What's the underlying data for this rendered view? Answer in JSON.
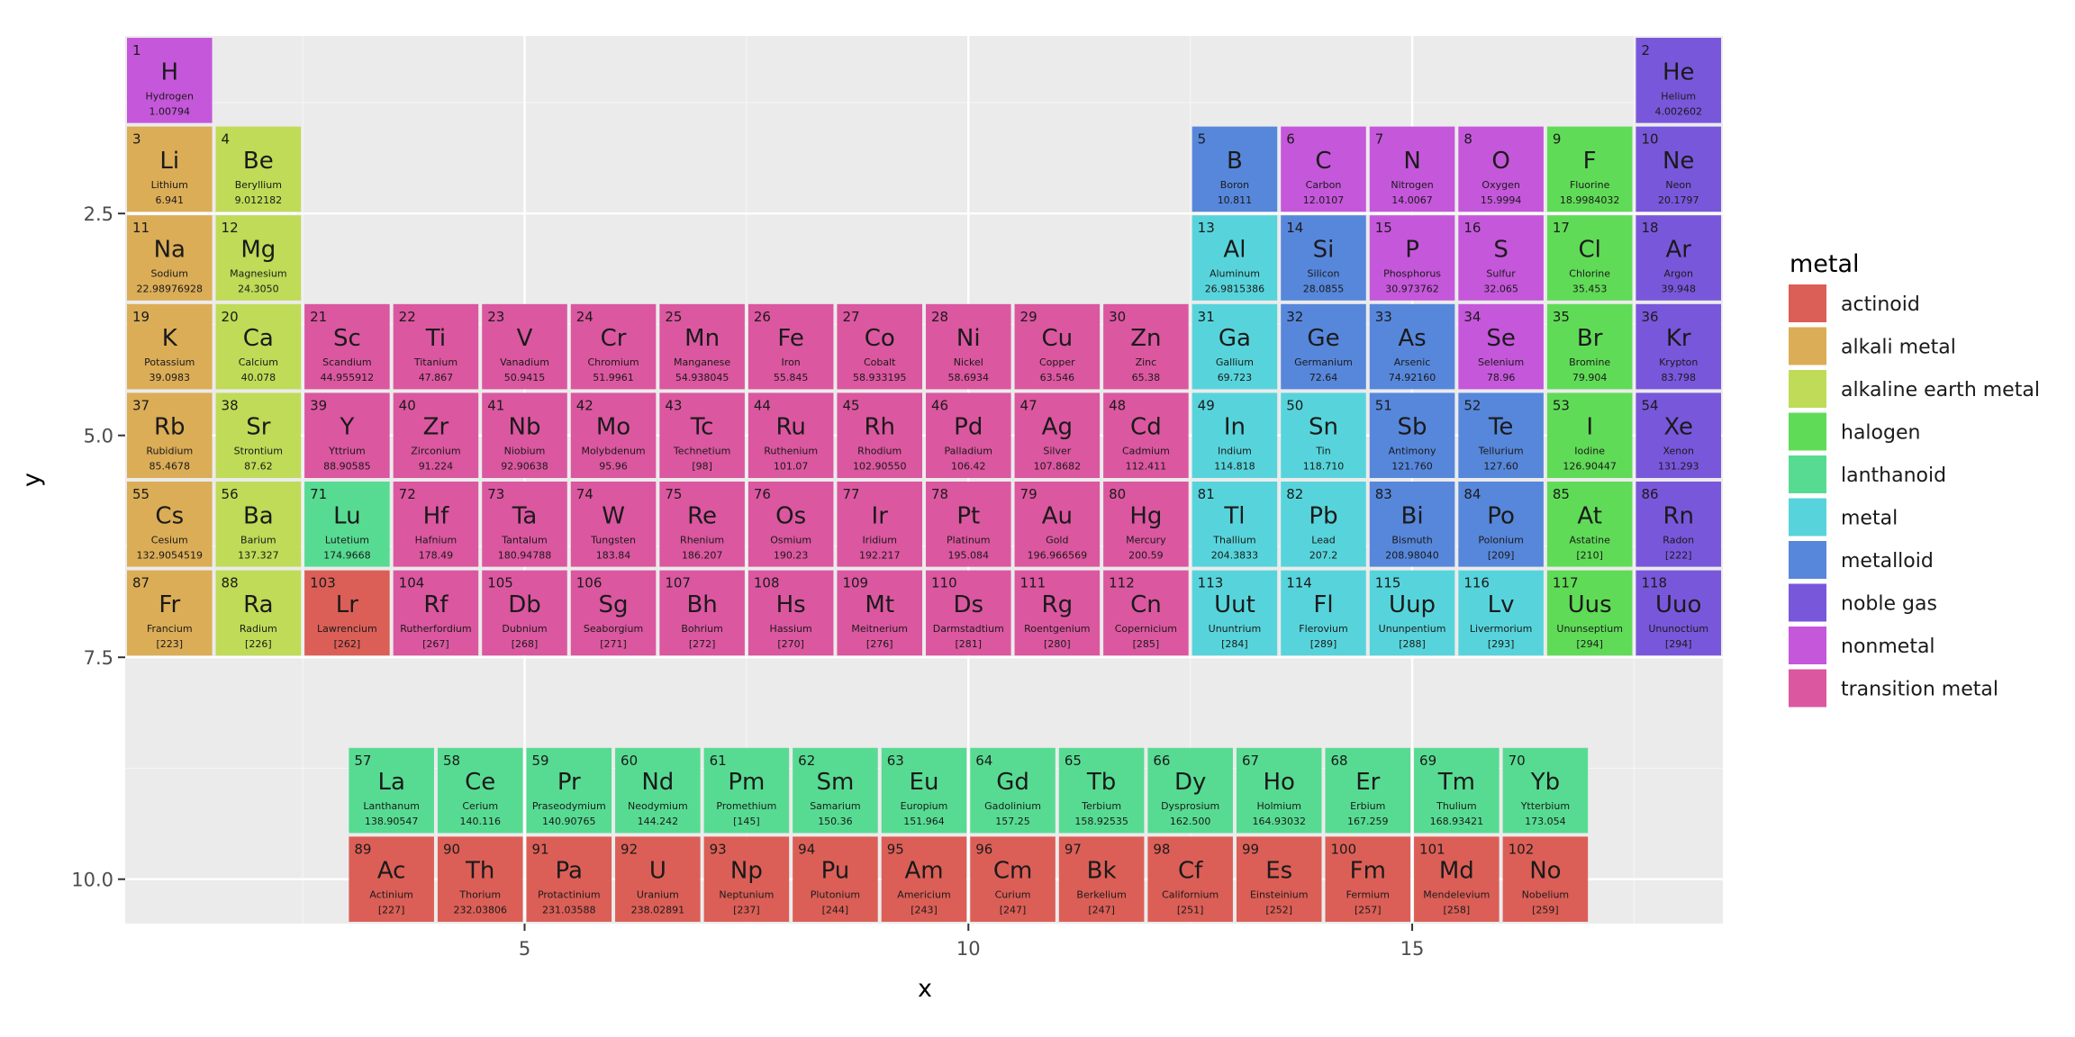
{
  "chart_data": {
    "type": "heatmap",
    "xlabel": "x",
    "ylabel": "y",
    "xlim": [
      0.5,
      18.5
    ],
    "ylim": [
      0.5,
      10.5
    ],
    "y_reversed": true,
    "x_ticks": [
      {
        "value": 5,
        "label": "5"
      },
      {
        "value": 10,
        "label": "10"
      },
      {
        "value": 15,
        "label": "15"
      }
    ],
    "y_ticks": [
      {
        "value": 2.5,
        "label": "2.5"
      },
      {
        "value": 5,
        "label": "5.0"
      },
      {
        "value": 7.5,
        "label": "7.5"
      },
      {
        "value": 10,
        "label": "10.0"
      }
    ],
    "grid": true,
    "legend": {
      "title": "metal",
      "position": "right",
      "entries": [
        {
          "label": "actinoid",
          "color": "#db5f57"
        },
        {
          "label": "alkali metal",
          "color": "#dbad57"
        },
        {
          "label": "alkaline earth metal",
          "color": "#bfdb57"
        },
        {
          "label": "halogen",
          "color": "#60db57"
        },
        {
          "label": "lanthanoid",
          "color": "#57db92"
        },
        {
          "label": "metal",
          "color": "#57d4db"
        },
        {
          "label": "metalloid",
          "color": "#5787db"
        },
        {
          "label": "noble gas",
          "color": "#7957db"
        },
        {
          "label": "nonmetal",
          "color": "#c557db"
        },
        {
          "label": "transition metal",
          "color": "#db57a0"
        }
      ]
    },
    "fields": [
      "atomic_number",
      "symbol",
      "name",
      "atomic_mass",
      "x",
      "y",
      "metal"
    ],
    "elements": [
      [
        1,
        "H",
        "Hydrogen",
        "1.00794",
        1,
        1,
        "nonmetal"
      ],
      [
        2,
        "He",
        "Helium",
        "4.002602",
        18,
        1,
        "noble gas"
      ],
      [
        3,
        "Li",
        "Lithium",
        "6.941",
        1,
        2,
        "alkali metal"
      ],
      [
        4,
        "Be",
        "Beryllium",
        "9.012182",
        2,
        2,
        "alkaline earth metal"
      ],
      [
        5,
        "B",
        "Boron",
        "10.811",
        13,
        2,
        "metalloid"
      ],
      [
        6,
        "C",
        "Carbon",
        "12.0107",
        14,
        2,
        "nonmetal"
      ],
      [
        7,
        "N",
        "Nitrogen",
        "14.0067",
        15,
        2,
        "nonmetal"
      ],
      [
        8,
        "O",
        "Oxygen",
        "15.9994",
        16,
        2,
        "nonmetal"
      ],
      [
        9,
        "F",
        "Fluorine",
        "18.9984032",
        17,
        2,
        "halogen"
      ],
      [
        10,
        "Ne",
        "Neon",
        "20.1797",
        18,
        2,
        "noble gas"
      ],
      [
        11,
        "Na",
        "Sodium",
        "22.98976928",
        1,
        3,
        "alkali metal"
      ],
      [
        12,
        "Mg",
        "Magnesium",
        "24.3050",
        2,
        3,
        "alkaline earth metal"
      ],
      [
        13,
        "Al",
        "Aluminum",
        "26.9815386",
        13,
        3,
        "metal"
      ],
      [
        14,
        "Si",
        "Silicon",
        "28.0855",
        14,
        3,
        "metalloid"
      ],
      [
        15,
        "P",
        "Phosphorus",
        "30.973762",
        15,
        3,
        "nonmetal"
      ],
      [
        16,
        "S",
        "Sulfur",
        "32.065",
        16,
        3,
        "nonmetal"
      ],
      [
        17,
        "Cl",
        "Chlorine",
        "35.453",
        17,
        3,
        "halogen"
      ],
      [
        18,
        "Ar",
        "Argon",
        "39.948",
        18,
        3,
        "noble gas"
      ],
      [
        19,
        "K",
        "Potassium",
        "39.0983",
        1,
        4,
        "alkali metal"
      ],
      [
        20,
        "Ca",
        "Calcium",
        "40.078",
        2,
        4,
        "alkaline earth metal"
      ],
      [
        21,
        "Sc",
        "Scandium",
        "44.955912",
        3,
        4,
        "transition metal"
      ],
      [
        22,
        "Ti",
        "Titanium",
        "47.867",
        4,
        4,
        "transition metal"
      ],
      [
        23,
        "V",
        "Vanadium",
        "50.9415",
        5,
        4,
        "transition metal"
      ],
      [
        24,
        "Cr",
        "Chromium",
        "51.9961",
        6,
        4,
        "transition metal"
      ],
      [
        25,
        "Mn",
        "Manganese",
        "54.938045",
        7,
        4,
        "transition metal"
      ],
      [
        26,
        "Fe",
        "Iron",
        "55.845",
        8,
        4,
        "transition metal"
      ],
      [
        27,
        "Co",
        "Cobalt",
        "58.933195",
        9,
        4,
        "transition metal"
      ],
      [
        28,
        "Ni",
        "Nickel",
        "58.6934",
        10,
        4,
        "transition metal"
      ],
      [
        29,
        "Cu",
        "Copper",
        "63.546",
        11,
        4,
        "transition metal"
      ],
      [
        30,
        "Zn",
        "Zinc",
        "65.38",
        12,
        4,
        "transition metal"
      ],
      [
        31,
        "Ga",
        "Gallium",
        "69.723",
        13,
        4,
        "metal"
      ],
      [
        32,
        "Ge",
        "Germanium",
        "72.64",
        14,
        4,
        "metalloid"
      ],
      [
        33,
        "As",
        "Arsenic",
        "74.92160",
        15,
        4,
        "metalloid"
      ],
      [
        34,
        "Se",
        "Selenium",
        "78.96",
        16,
        4,
        "nonmetal"
      ],
      [
        35,
        "Br",
        "Bromine",
        "79.904",
        17,
        4,
        "halogen"
      ],
      [
        36,
        "Kr",
        "Krypton",
        "83.798",
        18,
        4,
        "noble gas"
      ],
      [
        37,
        "Rb",
        "Rubidium",
        "85.4678",
        1,
        5,
        "alkali metal"
      ],
      [
        38,
        "Sr",
        "Strontium",
        "87.62",
        2,
        5,
        "alkaline earth metal"
      ],
      [
        39,
        "Y",
        "Yttrium",
        "88.90585",
        3,
        5,
        "transition metal"
      ],
      [
        40,
        "Zr",
        "Zirconium",
        "91.224",
        4,
        5,
        "transition metal"
      ],
      [
        41,
        "Nb",
        "Niobium",
        "92.90638",
        5,
        5,
        "transition metal"
      ],
      [
        42,
        "Mo",
        "Molybdenum",
        "95.96",
        6,
        5,
        "transition metal"
      ],
      [
        43,
        "Tc",
        "Technetium",
        "[98]",
        7,
        5,
        "transition metal"
      ],
      [
        44,
        "Ru",
        "Ruthenium",
        "101.07",
        8,
        5,
        "transition metal"
      ],
      [
        45,
        "Rh",
        "Rhodium",
        "102.90550",
        9,
        5,
        "transition metal"
      ],
      [
        46,
        "Pd",
        "Palladium",
        "106.42",
        10,
        5,
        "transition metal"
      ],
      [
        47,
        "Ag",
        "Silver",
        "107.8682",
        11,
        5,
        "transition metal"
      ],
      [
        48,
        "Cd",
        "Cadmium",
        "112.411",
        12,
        5,
        "transition metal"
      ],
      [
        49,
        "In",
        "Indium",
        "114.818",
        13,
        5,
        "metal"
      ],
      [
        50,
        "Sn",
        "Tin",
        "118.710",
        14,
        5,
        "metal"
      ],
      [
        51,
        "Sb",
        "Antimony",
        "121.760",
        15,
        5,
        "metalloid"
      ],
      [
        52,
        "Te",
        "Tellurium",
        "127.60",
        16,
        5,
        "metalloid"
      ],
      [
        53,
        "I",
        "Iodine",
        "126.90447",
        17,
        5,
        "halogen"
      ],
      [
        54,
        "Xe",
        "Xenon",
        "131.293",
        18,
        5,
        "noble gas"
      ],
      [
        55,
        "Cs",
        "Cesium",
        "132.9054519",
        1,
        6,
        "alkali metal"
      ],
      [
        56,
        "Ba",
        "Barium",
        "137.327",
        2,
        6,
        "alkaline earth metal"
      ],
      [
        71,
        "Lu",
        "Lutetium",
        "174.9668",
        3,
        6,
        "lanthanoid"
      ],
      [
        72,
        "Hf",
        "Hafnium",
        "178.49",
        4,
        6,
        "transition metal"
      ],
      [
        73,
        "Ta",
        "Tantalum",
        "180.94788",
        5,
        6,
        "transition metal"
      ],
      [
        74,
        "W",
        "Tungsten",
        "183.84",
        6,
        6,
        "transition metal"
      ],
      [
        75,
        "Re",
        "Rhenium",
        "186.207",
        7,
        6,
        "transition metal"
      ],
      [
        76,
        "Os",
        "Osmium",
        "190.23",
        8,
        6,
        "transition metal"
      ],
      [
        77,
        "Ir",
        "Iridium",
        "192.217",
        9,
        6,
        "transition metal"
      ],
      [
        78,
        "Pt",
        "Platinum",
        "195.084",
        10,
        6,
        "transition metal"
      ],
      [
        79,
        "Au",
        "Gold",
        "196.966569",
        11,
        6,
        "transition metal"
      ],
      [
        80,
        "Hg",
        "Mercury",
        "200.59",
        12,
        6,
        "transition metal"
      ],
      [
        81,
        "Tl",
        "Thallium",
        "204.3833",
        13,
        6,
        "metal"
      ],
      [
        82,
        "Pb",
        "Lead",
        "207.2",
        14,
        6,
        "metal"
      ],
      [
        83,
        "Bi",
        "Bismuth",
        "208.98040",
        15,
        6,
        "metalloid"
      ],
      [
        84,
        "Po",
        "Polonium",
        "[209]",
        16,
        6,
        "metalloid"
      ],
      [
        85,
        "At",
        "Astatine",
        "[210]",
        17,
        6,
        "halogen"
      ],
      [
        86,
        "Rn",
        "Radon",
        "[222]",
        18,
        6,
        "noble gas"
      ],
      [
        87,
        "Fr",
        "Francium",
        "[223]",
        1,
        7,
        "alkali metal"
      ],
      [
        88,
        "Ra",
        "Radium",
        "[226]",
        2,
        7,
        "alkaline earth metal"
      ],
      [
        103,
        "Lr",
        "Lawrencium",
        "[262]",
        3,
        7,
        "actinoid"
      ],
      [
        104,
        "Rf",
        "Rutherfordium",
        "[267]",
        4,
        7,
        "transition metal"
      ],
      [
        105,
        "Db",
        "Dubnium",
        "[268]",
        5,
        7,
        "transition metal"
      ],
      [
        106,
        "Sg",
        "Seaborgium",
        "[271]",
        6,
        7,
        "transition metal"
      ],
      [
        107,
        "Bh",
        "Bohrium",
        "[272]",
        7,
        7,
        "transition metal"
      ],
      [
        108,
        "Hs",
        "Hassium",
        "[270]",
        8,
        7,
        "transition metal"
      ],
      [
        109,
        "Mt",
        "Meitnerium",
        "[276]",
        9,
        7,
        "transition metal"
      ],
      [
        110,
        "Ds",
        "Darmstadtium",
        "[281]",
        10,
        7,
        "transition metal"
      ],
      [
        111,
        "Rg",
        "Roentgenium",
        "[280]",
        11,
        7,
        "transition metal"
      ],
      [
        112,
        "Cn",
        "Copernicium",
        "[285]",
        12,
        7,
        "transition metal"
      ],
      [
        113,
        "Uut",
        "Ununtrium",
        "[284]",
        13,
        7,
        "metal"
      ],
      [
        114,
        "Fl",
        "Flerovium",
        "[289]",
        14,
        7,
        "metal"
      ],
      [
        115,
        "Uup",
        "Ununpentium",
        "[288]",
        15,
        7,
        "metal"
      ],
      [
        116,
        "Lv",
        "Livermorium",
        "[293]",
        16,
        7,
        "metal"
      ],
      [
        117,
        "Uus",
        "Ununseptium",
        "[294]",
        17,
        7,
        "halogen"
      ],
      [
        118,
        "Uuo",
        "Ununoctium",
        "[294]",
        18,
        7,
        "noble gas"
      ],
      [
        57,
        "La",
        "Lanthanum",
        "138.90547",
        3.5,
        9,
        "lanthanoid"
      ],
      [
        58,
        "Ce",
        "Cerium",
        "140.116",
        4.5,
        9,
        "lanthanoid"
      ],
      [
        59,
        "Pr",
        "Praseodymium",
        "140.90765",
        5.5,
        9,
        "lanthanoid"
      ],
      [
        60,
        "Nd",
        "Neodymium",
        "144.242",
        6.5,
        9,
        "lanthanoid"
      ],
      [
        61,
        "Pm",
        "Promethium",
        "[145]",
        7.5,
        9,
        "lanthanoid"
      ],
      [
        62,
        "Sm",
        "Samarium",
        "150.36",
        8.5,
        9,
        "lanthanoid"
      ],
      [
        63,
        "Eu",
        "Europium",
        "151.964",
        9.5,
        9,
        "lanthanoid"
      ],
      [
        64,
        "Gd",
        "Gadolinium",
        "157.25",
        10.5,
        9,
        "lanthanoid"
      ],
      [
        65,
        "Tb",
        "Terbium",
        "158.92535",
        11.5,
        9,
        "lanthanoid"
      ],
      [
        66,
        "Dy",
        "Dysprosium",
        "162.500",
        12.5,
        9,
        "lanthanoid"
      ],
      [
        67,
        "Ho",
        "Holmium",
        "164.93032",
        13.5,
        9,
        "lanthanoid"
      ],
      [
        68,
        "Er",
        "Erbium",
        "167.259",
        14.5,
        9,
        "lanthanoid"
      ],
      [
        69,
        "Tm",
        "Thulium",
        "168.93421",
        15.5,
        9,
        "lanthanoid"
      ],
      [
        70,
        "Yb",
        "Ytterbium",
        "173.054",
        16.5,
        9,
        "lanthanoid"
      ],
      [
        89,
        "Ac",
        "Actinium",
        "[227]",
        3.5,
        10,
        "actinoid"
      ],
      [
        90,
        "Th",
        "Thorium",
        "232.03806",
        4.5,
        10,
        "actinoid"
      ],
      [
        91,
        "Pa",
        "Protactinium",
        "231.03588",
        5.5,
        10,
        "actinoid"
      ],
      [
        92,
        "U",
        "Uranium",
        "238.02891",
        6.5,
        10,
        "actinoid"
      ],
      [
        93,
        "Np",
        "Neptunium",
        "[237]",
        7.5,
        10,
        "actinoid"
      ],
      [
        94,
        "Pu",
        "Plutonium",
        "[244]",
        8.5,
        10,
        "actinoid"
      ],
      [
        95,
        "Am",
        "Americium",
        "[243]",
        9.5,
        10,
        "actinoid"
      ],
      [
        96,
        "Cm",
        "Curium",
        "[247]",
        10.5,
        10,
        "actinoid"
      ],
      [
        97,
        "Bk",
        "Berkelium",
        "[247]",
        11.5,
        10,
        "actinoid"
      ],
      [
        98,
        "Cf",
        "Californium",
        "[251]",
        12.5,
        10,
        "actinoid"
      ],
      [
        99,
        "Es",
        "Einsteinium",
        "[252]",
        13.5,
        10,
        "actinoid"
      ],
      [
        100,
        "Fm",
        "Fermium",
        "[257]",
        14.5,
        10,
        "actinoid"
      ],
      [
        101,
        "Md",
        "Mendelevium",
        "[258]",
        15.5,
        10,
        "actinoid"
      ],
      [
        102,
        "No",
        "Nobelium",
        "[259]",
        16.5,
        10,
        "actinoid"
      ]
    ],
    "lr_overlay": {
      "atomic_number": 71,
      "symbol": "Lu",
      "color": "#57db92"
    }
  }
}
